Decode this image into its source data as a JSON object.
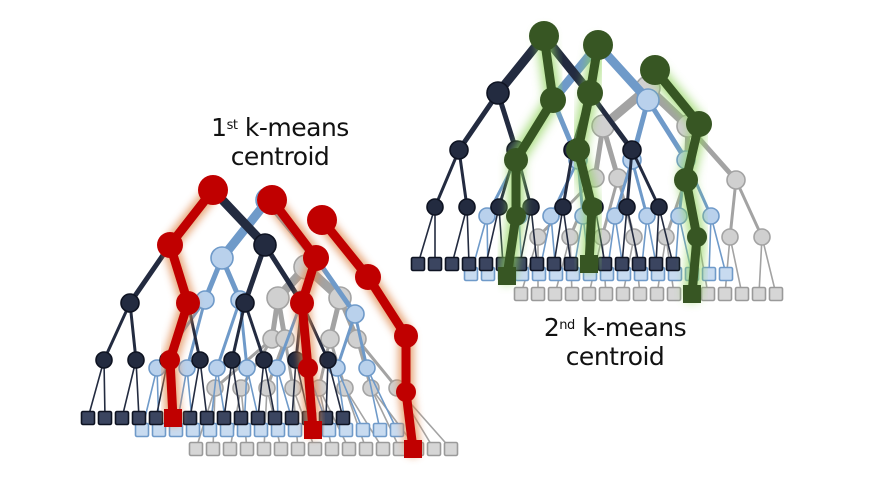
{
  "captions": {
    "first": {
      "ordinal": "1",
      "suffix": "st",
      "line1_rest": " k-means",
      "line2": "centroid"
    },
    "second": {
      "ordinal": "2",
      "suffix": "nd",
      "line1_rest": " k-means",
      "line2": "centroid"
    }
  },
  "colors": {
    "tree_dark": "#232b40",
    "tree_blue": "#6f9ac9",
    "tree_blue_fill": "#b9d1ec",
    "tree_gray": "#a3a3a3",
    "tree_gray_fill": "#d0d0d0",
    "highlight_red": "#c00000",
    "highlight_green": "#375623",
    "glow_green": "#8fd35a",
    "glow_red": "#e08a4f"
  },
  "groups": [
    {
      "name": "left-group",
      "highlight": "red"
    },
    {
      "name": "right-group",
      "highlight": "green"
    }
  ]
}
